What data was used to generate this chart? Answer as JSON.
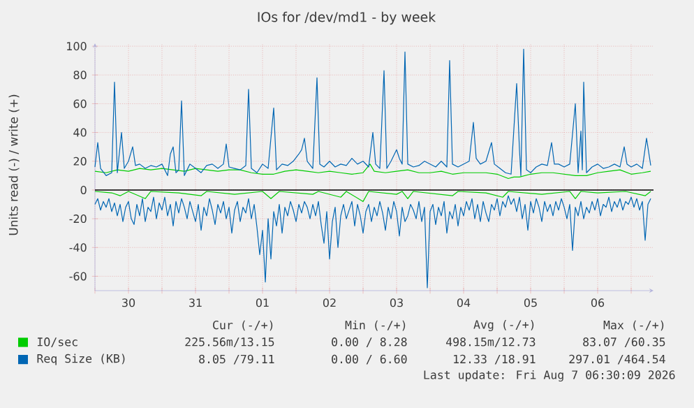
{
  "chart_data": {
    "type": "line",
    "title": "IOs for /dev/md1 - by week",
    "ylabel": "Units read (-) / write (+)",
    "xlim": [
      "2026-07-30T00:00",
      "2026-08-07T08:00"
    ],
    "ylim": [
      -70,
      102
    ],
    "xticks": [
      {
        "value": "2026-07-30T00:00",
        "label": null
      },
      {
        "value": "2026-07-30T12:00",
        "label": "30"
      },
      {
        "value": "2026-07-31T00:00",
        "label": null
      },
      {
        "value": "2026-07-31T12:00",
        "label": "31"
      },
      {
        "value": "2026-08-01T00:00",
        "label": null
      },
      {
        "value": "2026-08-01T12:00",
        "label": "01"
      },
      {
        "value": "2026-08-02T00:00",
        "label": null
      },
      {
        "value": "2026-08-02T12:00",
        "label": "02"
      },
      {
        "value": "2026-08-03T00:00",
        "label": null
      },
      {
        "value": "2026-08-03T12:00",
        "label": "03"
      },
      {
        "value": "2026-08-04T00:00",
        "label": null
      },
      {
        "value": "2026-08-04T12:00",
        "label": "04"
      },
      {
        "value": "2026-08-05T00:00",
        "label": null
      },
      {
        "value": "2026-08-05T12:00",
        "label": "05"
      },
      {
        "value": "2026-08-06T00:00",
        "label": null
      },
      {
        "value": "2026-08-06T12:00",
        "label": "06"
      },
      {
        "value": "2026-08-07T00:00",
        "label": null
      }
    ],
    "yticks": [
      -60,
      -40,
      -20,
      0,
      20,
      40,
      60,
      80,
      100
    ],
    "grid": true,
    "legend": "bottom",
    "marker": "none",
    "line_style": "solid",
    "ref_lines": [
      {
        "axis": "y",
        "value": 0,
        "color": "#000000"
      }
    ],
    "series": [
      {
        "name": "IO/sec",
        "color": "#00cc00",
        "x": [
          "2026-07-30T00:00",
          "2026-07-30T04:00",
          "2026-07-30T08:00",
          "2026-07-30T12:00",
          "2026-07-30T16:00",
          "2026-07-30T20:00",
          "2026-07-31T00:00",
          "2026-07-31T04:00",
          "2026-07-31T08:00",
          "2026-07-31T12:00",
          "2026-07-31T16:00",
          "2026-07-31T20:00",
          "2026-08-01T00:00",
          "2026-08-01T04:00",
          "2026-08-01T08:00",
          "2026-08-01T12:00",
          "2026-08-01T16:00",
          "2026-08-01T20:00",
          "2026-08-02T00:00",
          "2026-08-02T04:00",
          "2026-08-02T08:00",
          "2026-08-02T12:00",
          "2026-08-02T16:00",
          "2026-08-02T20:00",
          "2026-08-03T00:00",
          "2026-08-03T02:30",
          "2026-08-03T04:00",
          "2026-08-03T08:00",
          "2026-08-03T12:00",
          "2026-08-03T16:00",
          "2026-08-03T20:00",
          "2026-08-04T00:00",
          "2026-08-04T04:00",
          "2026-08-04T08:00",
          "2026-08-04T12:00",
          "2026-08-04T16:00",
          "2026-08-04T20:00",
          "2026-08-05T00:00",
          "2026-08-05T04:00",
          "2026-08-05T06:00",
          "2026-08-05T08:00",
          "2026-08-05T12:00",
          "2026-08-05T16:00",
          "2026-08-05T20:00",
          "2026-08-06T00:00",
          "2026-08-06T04:00",
          "2026-08-06T08:00",
          "2026-08-06T12:00",
          "2026-08-06T16:00",
          "2026-08-06T20:00",
          "2026-08-07T00:00",
          "2026-08-07T04:00",
          "2026-08-07T07:00"
        ],
        "values": [
          13,
          12,
          14,
          13,
          15,
          14,
          15,
          14,
          13,
          15,
          14,
          13,
          14,
          14,
          12,
          11,
          11,
          13,
          14,
          13,
          12,
          13,
          12,
          11,
          12,
          18,
          13,
          12,
          13,
          14,
          12,
          12,
          13,
          11,
          12,
          12,
          12,
          11,
          8,
          9,
          9,
          11,
          12,
          12,
          11,
          10,
          10,
          12,
          13,
          14,
          11,
          12,
          13
        ]
      },
      {
        "color": "#00cc00",
        "x": [
          "2026-07-30T00:00",
          "2026-07-30T06:00",
          "2026-07-30T09:00",
          "2026-07-30T12:00",
          "2026-07-30T18:00",
          "2026-07-30T20:00",
          "2026-07-31T06:00",
          "2026-07-31T14:00",
          "2026-07-31T16:00",
          "2026-08-01T02:00",
          "2026-08-01T12:00",
          "2026-08-01T15:00",
          "2026-08-01T18:00",
          "2026-08-02T06:00",
          "2026-08-02T08:00",
          "2026-08-02T16:00",
          "2026-08-02T18:00",
          "2026-08-03T00:00",
          "2026-08-03T02:00",
          "2026-08-03T12:00",
          "2026-08-03T14:00",
          "2026-08-03T16:00",
          "2026-08-03T18:00",
          "2026-08-04T08:00",
          "2026-08-04T10:00",
          "2026-08-04T20:00",
          "2026-08-05T02:00",
          "2026-08-05T04:00",
          "2026-08-05T16:00",
          "2026-08-06T02:00",
          "2026-08-06T04:00",
          "2026-08-06T06:00",
          "2026-08-06T12:00",
          "2026-08-06T22:00",
          "2026-08-07T05:00",
          "2026-08-07T07:00"
        ],
        "values": [
          -1,
          -2,
          -4,
          -1,
          -6,
          -1,
          -2,
          -4,
          -1,
          -3,
          -1,
          -6,
          -1,
          -3,
          -1,
          -5,
          -1,
          -8,
          -1,
          -3,
          -1,
          -6,
          -1,
          -4,
          -1,
          -2,
          -5,
          -1,
          -3,
          -1,
          -6,
          -1,
          -2,
          -1,
          -4,
          -1
        ]
      },
      {
        "name": "Req Size (KB)",
        "color": "#0066b3",
        "x": [
          "2026-07-30T00:00",
          "2026-07-30T01:00",
          "2026-07-30T02:00",
          "2026-07-30T04:00",
          "2026-07-30T06:00",
          "2026-07-30T07:00",
          "2026-07-30T08:00",
          "2026-07-30T09:30",
          "2026-07-30T10:30",
          "2026-07-30T12:00",
          "2026-07-30T13:30",
          "2026-07-30T14:30",
          "2026-07-30T16:00",
          "2026-07-30T18:00",
          "2026-07-30T20:00",
          "2026-07-30T22:00",
          "2026-07-31T00:00",
          "2026-07-31T02:00",
          "2026-07-31T03:00",
          "2026-07-31T04:00",
          "2026-07-31T05:00",
          "2026-07-31T06:00",
          "2026-07-31T07:00",
          "2026-07-31T08:00",
          "2026-07-31T10:00",
          "2026-07-31T12:00",
          "2026-07-31T14:00",
          "2026-07-31T16:00",
          "2026-07-31T18:00",
          "2026-07-31T20:00",
          "2026-07-31T22:00",
          "2026-07-31T23:00",
          "2026-08-01T00:00",
          "2026-08-01T02:00",
          "2026-08-01T04:00",
          "2026-08-01T06:00",
          "2026-08-01T07:00",
          "2026-08-01T08:00",
          "2026-08-01T10:00",
          "2026-08-01T12:00",
          "2026-08-01T14:00",
          "2026-08-01T16:00",
          "2026-08-01T17:00",
          "2026-08-01T19:00",
          "2026-08-01T21:00",
          "2026-08-01T23:00",
          "2026-08-02T01:00",
          "2026-08-02T02:00",
          "2026-08-02T03:00",
          "2026-08-02T04:00",
          "2026-08-02T06:00",
          "2026-08-02T07:30",
          "2026-08-02T08:30",
          "2026-08-02T10:00",
          "2026-08-02T12:00",
          "2026-08-02T14:00",
          "2026-08-02T16:00",
          "2026-08-02T18:00",
          "2026-08-02T20:00",
          "2026-08-02T22:00",
          "2026-08-03T00:00",
          "2026-08-03T02:00",
          "2026-08-03T03:30",
          "2026-08-03T04:30",
          "2026-08-03T06:00",
          "2026-08-03T07:30",
          "2026-08-03T08:30",
          "2026-08-03T10:00",
          "2026-08-03T12:00",
          "2026-08-03T13:00",
          "2026-08-03T14:00",
          "2026-08-03T15:00",
          "2026-08-03T16:00",
          "2026-08-03T18:00",
          "2026-08-03T20:00",
          "2026-08-03T22:00",
          "2026-08-04T00:00",
          "2026-08-04T02:00",
          "2026-08-04T04:00",
          "2026-08-04T06:00",
          "2026-08-04T07:00",
          "2026-08-04T08:00",
          "2026-08-04T10:00",
          "2026-08-04T12:00",
          "2026-08-04T14:00",
          "2026-08-04T15:30",
          "2026-08-04T16:30",
          "2026-08-04T18:00",
          "2026-08-04T20:00",
          "2026-08-04T22:00",
          "2026-08-04T23:00",
          "2026-08-05T01:00",
          "2026-08-05T03:00",
          "2026-08-05T05:00",
          "2026-08-05T07:00",
          "2026-08-05T08:00",
          "2026-08-05T08:30",
          "2026-08-05T09:30",
          "2026-08-05T10:30",
          "2026-08-05T12:00",
          "2026-08-05T14:00",
          "2026-08-05T16:00",
          "2026-08-05T18:00",
          "2026-08-05T19:30",
          "2026-08-05T20:30",
          "2026-08-05T22:00",
          "2026-08-06T00:00",
          "2026-08-06T02:00",
          "2026-08-06T04:00",
          "2026-08-06T05:00",
          "2026-08-06T06:00",
          "2026-08-06T06:30",
          "2026-08-06T07:00",
          "2026-08-06T08:00",
          "2026-08-06T10:00",
          "2026-08-06T12:00",
          "2026-08-06T14:00",
          "2026-08-06T16:00",
          "2026-08-06T18:00",
          "2026-08-06T20:00",
          "2026-08-06T21:30",
          "2026-08-06T22:30",
          "2026-08-07T00:00",
          "2026-08-07T02:00",
          "2026-08-07T04:00",
          "2026-08-07T05:30",
          "2026-08-07T07:00"
        ],
        "values": [
          16,
          33,
          15,
          10,
          12,
          75,
          12,
          40,
          15,
          20,
          30,
          17,
          18,
          15,
          17,
          16,
          18,
          10,
          25,
          30,
          12,
          14,
          62,
          10,
          18,
          15,
          12,
          17,
          18,
          15,
          18,
          32,
          16,
          15,
          14,
          17,
          70,
          15,
          12,
          18,
          15,
          57,
          14,
          18,
          17,
          20,
          25,
          28,
          36,
          20,
          15,
          78,
          18,
          16,
          20,
          16,
          18,
          17,
          22,
          18,
          20,
          16,
          40,
          18,
          15,
          83,
          15,
          20,
          28,
          22,
          18,
          96,
          18,
          16,
          17,
          20,
          18,
          16,
          20,
          16,
          90,
          18,
          16,
          18,
          20,
          47,
          22,
          18,
          20,
          33,
          18,
          15,
          12,
          11,
          74,
          28,
          10,
          98,
          14,
          12,
          16,
          18,
          17,
          33,
          18,
          18,
          16,
          18,
          60,
          12,
          41,
          14,
          75,
          12,
          16,
          18,
          15,
          16,
          18,
          16,
          30,
          18,
          16,
          18,
          15,
          36,
          17
        ]
      },
      {
        "color": "#0066b3",
        "x": [
          "2026-07-30T00:00",
          "2026-07-30T01:00",
          "2026-07-30T02:00",
          "2026-07-30T03:00",
          "2026-07-30T04:00",
          "2026-07-30T05:00",
          "2026-07-30T06:00",
          "2026-07-30T07:00",
          "2026-07-30T08:00",
          "2026-07-30T09:00",
          "2026-07-30T10:00",
          "2026-07-30T11:00",
          "2026-07-30T12:00",
          "2026-07-30T13:00",
          "2026-07-30T14:00",
          "2026-07-30T15:00",
          "2026-07-30T16:00",
          "2026-07-30T17:00",
          "2026-07-30T18:00",
          "2026-07-30T19:00",
          "2026-07-30T20:00",
          "2026-07-30T21:00",
          "2026-07-30T22:00",
          "2026-07-30T23:00",
          "2026-07-31T00:00",
          "2026-07-31T01:00",
          "2026-07-31T02:00",
          "2026-07-31T03:00",
          "2026-07-31T04:00",
          "2026-07-31T05:00",
          "2026-07-31T06:00",
          "2026-07-31T07:00",
          "2026-07-31T08:00",
          "2026-07-31T09:00",
          "2026-07-31T10:00",
          "2026-07-31T11:00",
          "2026-07-31T12:00",
          "2026-07-31T13:00",
          "2026-07-31T14:00",
          "2026-07-31T15:00",
          "2026-07-31T16:00",
          "2026-07-31T17:00",
          "2026-07-31T18:00",
          "2026-07-31T19:00",
          "2026-07-31T20:00",
          "2026-07-31T21:00",
          "2026-07-31T22:00",
          "2026-07-31T23:00",
          "2026-08-01T00:00",
          "2026-08-01T01:00",
          "2026-08-01T02:00",
          "2026-08-01T03:00",
          "2026-08-01T04:00",
          "2026-08-01T05:00",
          "2026-08-01T06:00",
          "2026-08-01T07:00",
          "2026-08-01T08:00",
          "2026-08-01T09:00",
          "2026-08-01T10:00",
          "2026-08-01T11:00",
          "2026-08-01T12:00",
          "2026-08-01T13:00",
          "2026-08-01T14:00",
          "2026-08-01T15:00",
          "2026-08-01T16:00",
          "2026-08-01T17:00",
          "2026-08-01T18:00",
          "2026-08-01T19:00",
          "2026-08-01T20:00",
          "2026-08-01T21:00",
          "2026-08-01T22:00",
          "2026-08-01T23:00",
          "2026-08-02T00:00",
          "2026-08-02T01:00",
          "2026-08-02T02:00",
          "2026-08-02T03:00",
          "2026-08-02T04:00",
          "2026-08-02T05:00",
          "2026-08-02T06:00",
          "2026-08-02T07:00",
          "2026-08-02T08:00",
          "2026-08-02T09:00",
          "2026-08-02T10:00",
          "2026-08-02T11:00",
          "2026-08-02T12:00",
          "2026-08-02T13:00",
          "2026-08-02T14:00",
          "2026-08-02T15:00",
          "2026-08-02T16:00",
          "2026-08-02T17:00",
          "2026-08-02T18:00",
          "2026-08-02T19:00",
          "2026-08-02T20:00",
          "2026-08-02T21:00",
          "2026-08-02T22:00",
          "2026-08-02T23:00",
          "2026-08-03T00:00",
          "2026-08-03T01:00",
          "2026-08-03T02:00",
          "2026-08-03T03:00",
          "2026-08-03T04:00",
          "2026-08-03T05:00",
          "2026-08-03T06:00",
          "2026-08-03T07:00",
          "2026-08-03T08:00",
          "2026-08-03T09:00",
          "2026-08-03T10:00",
          "2026-08-03T11:00",
          "2026-08-03T12:00",
          "2026-08-03T13:00",
          "2026-08-03T14:00",
          "2026-08-03T15:00",
          "2026-08-03T16:00",
          "2026-08-03T17:00",
          "2026-08-03T18:00",
          "2026-08-03T19:00",
          "2026-08-03T20:00",
          "2026-08-03T21:00",
          "2026-08-03T22:00",
          "2026-08-03T23:00",
          "2026-08-04T00:00",
          "2026-08-04T01:00",
          "2026-08-04T02:00",
          "2026-08-04T03:00",
          "2026-08-04T04:00",
          "2026-08-04T05:00",
          "2026-08-04T06:00",
          "2026-08-04T07:00",
          "2026-08-04T08:00",
          "2026-08-04T09:00",
          "2026-08-04T10:00",
          "2026-08-04T11:00",
          "2026-08-04T12:00",
          "2026-08-04T13:00",
          "2026-08-04T14:00",
          "2026-08-04T15:00",
          "2026-08-04T16:00",
          "2026-08-04T17:00",
          "2026-08-04T18:00",
          "2026-08-04T19:00",
          "2026-08-04T20:00",
          "2026-08-04T21:00",
          "2026-08-04T22:00",
          "2026-08-04T23:00",
          "2026-08-05T00:00",
          "2026-08-05T01:00",
          "2026-08-05T02:00",
          "2026-08-05T03:00",
          "2026-08-05T04:00",
          "2026-08-05T05:00",
          "2026-08-05T06:00",
          "2026-08-05T07:00",
          "2026-08-05T08:00",
          "2026-08-05T09:00",
          "2026-08-05T10:00",
          "2026-08-05T11:00",
          "2026-08-05T12:00",
          "2026-08-05T13:00",
          "2026-08-05T14:00",
          "2026-08-05T15:00",
          "2026-08-05T16:00",
          "2026-08-05T17:00",
          "2026-08-05T18:00",
          "2026-08-05T19:00",
          "2026-08-05T20:00",
          "2026-08-05T21:00",
          "2026-08-05T22:00",
          "2026-08-05T23:00",
          "2026-08-06T00:00",
          "2026-08-06T01:00",
          "2026-08-06T02:00",
          "2026-08-06T03:00",
          "2026-08-06T04:00",
          "2026-08-06T05:00",
          "2026-08-06T06:00",
          "2026-08-06T07:00",
          "2026-08-06T08:00",
          "2026-08-06T09:00",
          "2026-08-06T10:00",
          "2026-08-06T11:00",
          "2026-08-06T12:00",
          "2026-08-06T13:00",
          "2026-08-06T14:00",
          "2026-08-06T15:00",
          "2026-08-06T16:00",
          "2026-08-06T17:00",
          "2026-08-06T18:00",
          "2026-08-06T19:00",
          "2026-08-06T20:00",
          "2026-08-06T21:00",
          "2026-08-06T22:00",
          "2026-08-06T23:00",
          "2026-08-07T00:00",
          "2026-08-07T01:00",
          "2026-08-07T02:00",
          "2026-08-07T03:00",
          "2026-08-07T04:00",
          "2026-08-07T05:00",
          "2026-08-07T06:00",
          "2026-08-07T07:00"
        ],
        "values": [
          -10,
          -6,
          -14,
          -8,
          -12,
          -6,
          -15,
          -9,
          -18,
          -10,
          -22,
          -12,
          -8,
          -20,
          -24,
          -10,
          -18,
          -6,
          -22,
          -12,
          -15,
          -5,
          -20,
          -9,
          -14,
          -5,
          -18,
          -10,
          -25,
          -8,
          -16,
          -6,
          -12,
          -20,
          -8,
          -15,
          -22,
          -10,
          -28,
          -12,
          -18,
          -6,
          -14,
          -24,
          -10,
          -16,
          -8,
          -20,
          -12,
          -30,
          -14,
          -8,
          -22,
          -12,
          -16,
          -6,
          -20,
          -10,
          -26,
          -45,
          -28,
          -64,
          -20,
          -48,
          -15,
          -25,
          -10,
          -30,
          -12,
          -18,
          -8,
          -14,
          -22,
          -10,
          -16,
          -8,
          -12,
          -20,
          -10,
          -18,
          -8,
          -24,
          -37,
          -15,
          -48,
          -22,
          -12,
          -40,
          -18,
          -10,
          -20,
          -14,
          -8,
          -25,
          -10,
          -18,
          -30,
          -15,
          -10,
          -22,
          -12,
          -18,
          -8,
          -16,
          -28,
          -12,
          -20,
          -8,
          -15,
          -32,
          -12,
          -22,
          -18,
          -10,
          -14,
          -20,
          -8,
          -22,
          -12,
          -68,
          -15,
          -10,
          -24,
          -12,
          -18,
          -8,
          -30,
          -15,
          -20,
          -10,
          -25,
          -12,
          -18,
          -8,
          -14,
          -6,
          -20,
          -10,
          -22,
          -8,
          -16,
          -22,
          -10,
          -14,
          -6,
          -18,
          -8,
          -12,
          -4,
          -10,
          -6,
          -15,
          -5,
          -20,
          -10,
          -28,
          -8,
          -16,
          -6,
          -12,
          -22,
          -8,
          -15,
          -10,
          -18,
          -8,
          -14,
          -6,
          -12,
          -20,
          -10,
          -42,
          -12,
          -18,
          -8,
          -20,
          -12,
          -16,
          -8,
          -14,
          -6,
          -18,
          -10,
          -12,
          -5,
          -15,
          -8,
          -12,
          -6,
          -14,
          -8,
          -10,
          -5,
          -12,
          -6,
          -14,
          -8,
          -35,
          -10,
          -6
        ]
      }
    ],
    "annotations": [
      "Cur (-/+)",
      "Min (-/+)",
      "Avg (-/+)",
      "Max (-/+)",
      "225.56m/13.15",
      "0.00 / 8.28",
      "498.15m/12.73",
      "83.07 /60.35",
      "8.05 /79.11",
      "0.00 / 6.60",
      "12.33 /18.91",
      "297.01 /464.54",
      "Last update: Fri Aug  7 06:30:09 2026"
    ]
  }
}
